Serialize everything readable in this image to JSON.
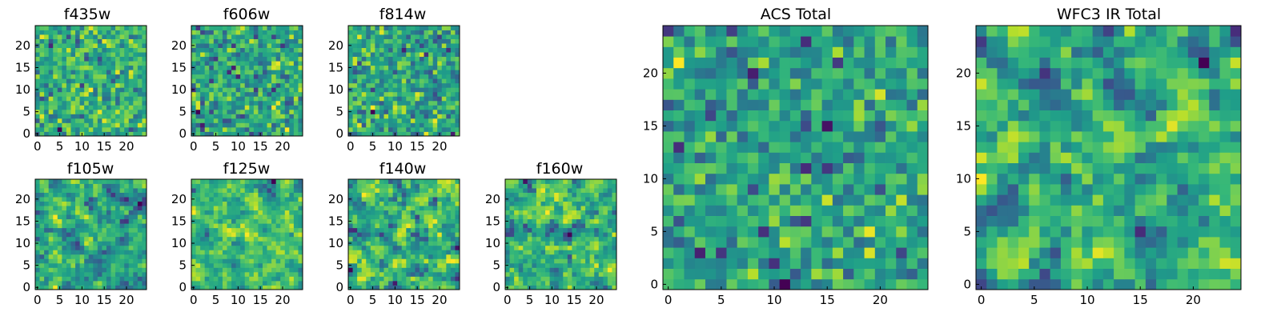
{
  "figure": {
    "colormap": "viridis",
    "background": "#ffffff"
  },
  "chart_data": [
    {
      "type": "heatmap",
      "title": "f435w",
      "grid_size": 25,
      "seed": 11,
      "smooth": 0,
      "xticks": [
        "0",
        "5",
        "10",
        "15",
        "20"
      ],
      "yticks": [
        "0",
        "5",
        "10",
        "15",
        "20"
      ]
    },
    {
      "type": "heatmap",
      "title": "f606w",
      "grid_size": 25,
      "seed": 23,
      "smooth": 0,
      "xticks": [
        "0",
        "5",
        "10",
        "15",
        "20"
      ],
      "yticks": [
        "0",
        "5",
        "10",
        "15",
        "20"
      ]
    },
    {
      "type": "heatmap",
      "title": "f814w",
      "grid_size": 25,
      "seed": 37,
      "smooth": 0,
      "xticks": [
        "0",
        "5",
        "10",
        "15",
        "20"
      ],
      "yticks": [
        "0",
        "5",
        "10",
        "15",
        "20"
      ]
    },
    {
      "type": "heatmap",
      "title": "f105w",
      "grid_size": 25,
      "seed": 41,
      "smooth": 1,
      "xticks": [
        "0",
        "5",
        "10",
        "15",
        "20"
      ],
      "yticks": [
        "0",
        "5",
        "10",
        "15",
        "20"
      ]
    },
    {
      "type": "heatmap",
      "title": "f125w",
      "grid_size": 25,
      "seed": 53,
      "smooth": 1,
      "xticks": [
        "0",
        "5",
        "10",
        "15",
        "20"
      ],
      "yticks": [
        "0",
        "5",
        "10",
        "15",
        "20"
      ]
    },
    {
      "type": "heatmap",
      "title": "f140w",
      "grid_size": 25,
      "seed": 67,
      "smooth": 1,
      "xticks": [
        "0",
        "5",
        "10",
        "15",
        "20"
      ],
      "yticks": [
        "0",
        "5",
        "10",
        "15",
        "20"
      ]
    },
    {
      "type": "heatmap",
      "title": "f160w",
      "grid_size": 25,
      "seed": 71,
      "smooth": 1,
      "xticks": [
        "0",
        "5",
        "10",
        "15",
        "20"
      ],
      "yticks": [
        "0",
        "5",
        "10",
        "15",
        "20"
      ]
    },
    {
      "type": "heatmap",
      "title": "ACS Total",
      "grid_size": 25,
      "seed": 83,
      "smooth": 0,
      "xticks": [
        "0",
        "5",
        "10",
        "15",
        "20"
      ],
      "yticks": [
        "0",
        "5",
        "10",
        "15",
        "20"
      ]
    },
    {
      "type": "heatmap",
      "title": "WFC3 IR Total",
      "grid_size": 25,
      "seed": 97,
      "smooth": 1,
      "xticks": [
        "0",
        "5",
        "10",
        "15",
        "20"
      ],
      "yticks": [
        "0",
        "5",
        "10",
        "15",
        "20"
      ]
    }
  ]
}
